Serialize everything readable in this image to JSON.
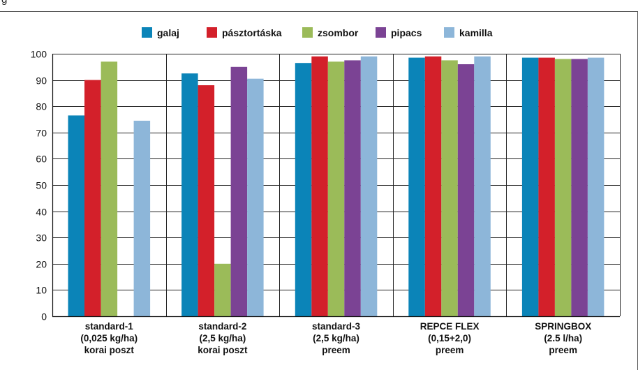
{
  "top_text_fragment": "g",
  "chart_data": {
    "type": "bar",
    "title": "",
    "xlabel": "",
    "ylabel": "",
    "ylim": [
      0,
      100
    ],
    "yticks": [
      0,
      10,
      20,
      30,
      40,
      50,
      60,
      70,
      80,
      90,
      100
    ],
    "grid": true,
    "legend_position": "top-center",
    "categories": [
      [
        "standard-1",
        "(0,025 kg/ha)",
        "korai poszt"
      ],
      [
        "standard-2",
        "(2,5 kg/ha)",
        "korai poszt"
      ],
      [
        "standard-3",
        "(2,5 kg/ha)",
        "preem"
      ],
      [
        "REPCE FLEX",
        "(0,15+2,0)",
        "preem"
      ],
      [
        "SPRINGBOX",
        "(2.5 l/ha)",
        "preem"
      ]
    ],
    "series": [
      {
        "name": "galaj",
        "color": "#0b84b8",
        "values": [
          76.5,
          92.5,
          96.5,
          98.5,
          98.5
        ]
      },
      {
        "name": "pásztortáska",
        "color": "#d3202a",
        "values": [
          90,
          88,
          99,
          99,
          98.5
        ]
      },
      {
        "name": "zsombor",
        "color": "#9bbb59",
        "values": [
          97,
          20,
          97,
          97.5,
          98
        ]
      },
      {
        "name": "pipacs",
        "color": "#7b4394",
        "values": [
          null,
          95,
          97.5,
          96,
          98
        ]
      },
      {
        "name": "kamilla",
        "color": "#8db6d9",
        "values": [
          74.5,
          90.5,
          99,
          99,
          98.5
        ]
      }
    ]
  }
}
